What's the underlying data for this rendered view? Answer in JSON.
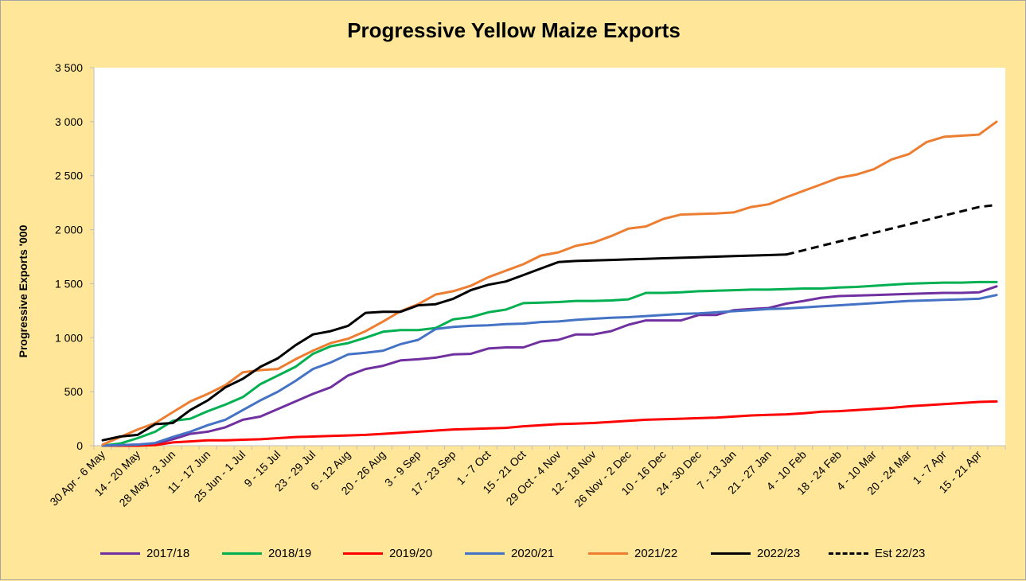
{
  "chart_data": {
    "type": "line",
    "title": "Progressive Yellow Maize Exports",
    "ylabel": "Progressive Exports '000",
    "xlabel": "",
    "ylim": [
      0,
      3500
    ],
    "yticks": [
      0,
      500,
      1000,
      1500,
      2000,
      2500,
      3000,
      3500
    ],
    "ytick_labels": [
      "0",
      "500",
      "1 000",
      "1 500",
      "2 000",
      "2 500",
      "3 000",
      "3 500"
    ],
    "grid": false,
    "legend_position": "bottom",
    "x_tick_labels": [
      "30 Apr - 6 May",
      "14 - 20 May",
      "28 May - 3 Jun",
      "11 - 17 Jun",
      "25 Jun - 1 Jul",
      "9 - 15 Jul",
      "23 - 29 Jul",
      "6 - 12 Aug",
      "20 - 26 Aug",
      "3 - 9 Sep",
      "17 - 23 Sep",
      "1 - 7 Oct",
      "15 - 21 Oct",
      "29 Oct - 4 Nov",
      "12 - 18 Nov",
      "26 Nov - 2 Dec",
      "10 - 16 Dec",
      "24 - 30 Dec",
      "7 - 13 Jan",
      "21 - 27 Jan",
      "4 - 10 Feb",
      "18 - 24 Feb",
      "4 - 10 Mar",
      "20 - 24 Mar",
      "1 - 7 Apr",
      "15 - 21 Apr"
    ],
    "series": [
      {
        "name": "2017/18",
        "color": "#7030a0",
        "dash": false,
        "values": [
          0,
          5,
          10,
          20,
          60,
          110,
          130,
          170,
          240,
          270,
          340,
          410,
          480,
          540,
          650,
          710,
          740,
          790,
          800,
          815,
          845,
          850,
          900,
          910,
          910,
          965,
          980,
          1030,
          1030,
          1060,
          1120,
          1160,
          1160,
          1160,
          1210,
          1210,
          1255,
          1265,
          1275,
          1315,
          1340,
          1370,
          1385,
          1390,
          1395,
          1400,
          1405,
          1410,
          1415,
          1415,
          1420,
          1475
        ]
      },
      {
        "name": "2018/19",
        "color": "#00b050",
        "dash": false,
        "values": [
          0,
          20,
          70,
          130,
          230,
          250,
          320,
          380,
          450,
          570,
          650,
          730,
          850,
          920,
          950,
          1000,
          1055,
          1070,
          1070,
          1090,
          1170,
          1190,
          1235,
          1260,
          1320,
          1325,
          1330,
          1340,
          1340,
          1345,
          1355,
          1415,
          1415,
          1420,
          1430,
          1435,
          1440,
          1445,
          1445,
          1450,
          1455,
          1455,
          1465,
          1470,
          1480,
          1490,
          1500,
          1505,
          1510,
          1510,
          1515,
          1515
        ]
      },
      {
        "name": "2019/20",
        "color": "#ff0000",
        "dash": false,
        "values": [
          0,
          0,
          0,
          5,
          30,
          40,
          50,
          50,
          55,
          60,
          70,
          80,
          85,
          90,
          95,
          100,
          110,
          120,
          130,
          140,
          150,
          155,
          160,
          165,
          180,
          190,
          200,
          205,
          210,
          220,
          230,
          240,
          245,
          250,
          255,
          260,
          270,
          280,
          285,
          290,
          300,
          315,
          320,
          330,
          340,
          350,
          365,
          375,
          385,
          395,
          405,
          410
        ]
      },
      {
        "name": "2020/21",
        "color": "#4472c4",
        "dash": false,
        "values": [
          0,
          5,
          10,
          25,
          80,
          130,
          190,
          240,
          330,
          420,
          500,
          600,
          710,
          770,
          845,
          860,
          880,
          940,
          980,
          1080,
          1100,
          1110,
          1115,
          1125,
          1130,
          1145,
          1150,
          1165,
          1175,
          1185,
          1190,
          1200,
          1210,
          1220,
          1225,
          1235,
          1245,
          1255,
          1265,
          1270,
          1280,
          1290,
          1300,
          1310,
          1320,
          1330,
          1340,
          1345,
          1350,
          1355,
          1360,
          1395
        ]
      },
      {
        "name": "2021/22",
        "color": "#ed7d31",
        "dash": false,
        "values": [
          10,
          80,
          150,
          210,
          310,
          410,
          480,
          560,
          680,
          700,
          710,
          800,
          880,
          950,
          990,
          1060,
          1150,
          1245,
          1310,
          1400,
          1430,
          1480,
          1560,
          1620,
          1680,
          1760,
          1790,
          1850,
          1880,
          1940,
          2010,
          2030,
          2100,
          2140,
          2145,
          2150,
          2160,
          2210,
          2235,
          2300,
          2360,
          2420,
          2480,
          2510,
          2560,
          2650,
          2700,
          2810,
          2860,
          2870,
          2880,
          3000
        ]
      },
      {
        "name": "2022/23",
        "color": "#000000",
        "dash": false,
        "values": [
          50,
          85,
          100,
          200,
          210,
          330,
          420,
          540,
          620,
          730,
          810,
          930,
          1030,
          1060,
          1110,
          1230,
          1240,
          1240,
          1300,
          1310,
          1360,
          1440,
          1490,
          1520,
          1580,
          1640,
          1700,
          1710,
          1715,
          1720,
          1725,
          1730,
          1735,
          1740,
          1745,
          1750,
          1755,
          1760,
          1765,
          1770
        ]
      },
      {
        "name": "Est 22/23",
        "color": "#000000",
        "dash": true,
        "values": [
          null,
          null,
          null,
          null,
          null,
          null,
          null,
          null,
          null,
          null,
          null,
          null,
          null,
          null,
          null,
          null,
          null,
          null,
          null,
          null,
          null,
          null,
          null,
          null,
          null,
          null,
          null,
          null,
          null,
          null,
          null,
          null,
          null,
          null,
          null,
          null,
          null,
          null,
          null,
          1770,
          1810,
          1850,
          1890,
          1930,
          1970,
          2010,
          2050,
          2090,
          2130,
          2170,
          2210,
          2230
        ]
      }
    ]
  }
}
